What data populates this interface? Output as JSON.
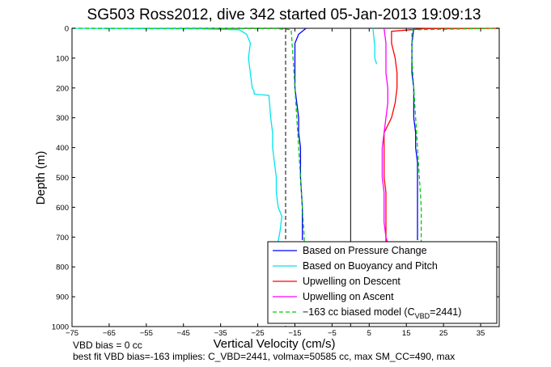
{
  "chart_data": {
    "type": "line",
    "title": "SG503 Ross2012, dive 342 started 05-Jan-2013 19:09:13",
    "xlabel": "Vertical Velocity (cm/s)",
    "ylabel": "Depth (m)",
    "xlim": [
      -75,
      40
    ],
    "ylim": [
      0,
      1000
    ],
    "y_reversed": true,
    "x_ticks": [
      -75,
      -65,
      -55,
      -45,
      -35,
      -25,
      -15,
      -5,
      5,
      15,
      25,
      35
    ],
    "y_ticks": [
      0,
      100,
      200,
      300,
      400,
      500,
      600,
      700,
      800,
      900,
      1000
    ],
    "grid": false,
    "legend_position": "bottom-right",
    "legend": [
      {
        "label": "Based on Pressure Change",
        "color": "#0000ff",
        "style": "solid"
      },
      {
        "label": "Based on Buoyancy and Pitch",
        "color": "#00e5ee",
        "style": "solid"
      },
      {
        "label": "Upwelling on Descent",
        "color": "#ff0000",
        "style": "solid"
      },
      {
        "label": "Upwelling on Ascent",
        "color": "#ff00ff",
        "style": "solid"
      },
      {
        "label_pre": "−163 cc biased model (C",
        "label_sub": "VBD",
        "label_post": "=2441)",
        "color": "#00cc00",
        "style": "dashed"
      }
    ],
    "series": [
      {
        "name": "Based on Pressure Change",
        "color": "#0000ff",
        "x": [
          -12,
          -14,
          -15,
          -15,
          -15,
          -15,
          -14.5,
          -14,
          -14,
          -13.5,
          -13.5,
          -13.5,
          -13,
          -13,
          -13
        ],
        "y": [
          0,
          20,
          50,
          100,
          150,
          200,
          250,
          300,
          350,
          400,
          450,
          500,
          600,
          700,
          710
        ]
      },
      {
        "name": "Based on Pressure Change (ascent)",
        "color": "#0000ff",
        "x": [
          17,
          16.5,
          16.5,
          16.5,
          17,
          17,
          17,
          17.5,
          17.5,
          18,
          18,
          18,
          18
        ],
        "y": [
          0,
          50,
          100,
          150,
          200,
          250,
          300,
          350,
          400,
          450,
          500,
          600,
          710
        ]
      },
      {
        "name": "Based on Buoyancy and Pitch",
        "color": "#00e5ee",
        "x": [
          -75,
          -40,
          -30,
          -28,
          -27,
          -27.5,
          -27,
          -26.5,
          -26,
          -26,
          -25,
          -22,
          -21.5,
          -21,
          -21,
          -20.5,
          -20,
          -20,
          -19.5,
          -18.5,
          -19,
          -20
        ],
        "y": [
          0,
          2,
          5,
          20,
          50,
          100,
          150,
          200,
          210,
          220,
          222,
          225,
          300,
          350,
          400,
          450,
          500,
          550,
          600,
          630,
          680,
          750
        ]
      },
      {
        "name": "Based on Buoyancy and Pitch (ascent)",
        "color": "#00e5ee",
        "x": [
          6,
          6.5,
          6.5,
          7
        ],
        "y": [
          0,
          60,
          100,
          120
        ]
      },
      {
        "name": "Upwelling on Descent",
        "color": "#ff0000",
        "x": [
          40,
          30,
          20,
          11,
          11,
          12,
          12.5,
          12.5,
          12,
          11,
          9,
          9,
          9,
          9,
          9.5,
          9.5,
          9.5,
          9.5,
          9.5
        ],
        "y": [
          0,
          0.5,
          1,
          10,
          50,
          100,
          150,
          200,
          250,
          300,
          350,
          400,
          450,
          500,
          550,
          600,
          650,
          700,
          720
        ]
      },
      {
        "name": "Upwelling on Ascent",
        "color": "#ff00ff",
        "x": [
          9,
          9.5,
          9.5,
          9.5,
          10,
          10,
          9.5,
          9,
          8.5,
          8.5,
          8.5,
          9,
          9,
          9,
          9.5,
          10
        ],
        "y": [
          0,
          50,
          100,
          150,
          200,
          250,
          300,
          350,
          400,
          450,
          500,
          550,
          600,
          650,
          700,
          720
        ]
      },
      {
        "name": "−163 cc biased model (CVBD=2441)",
        "color": "#00cc00",
        "dashed": true,
        "x": [
          -75,
          -20,
          -16,
          -15.5,
          -15,
          -14.5,
          -14,
          -13.5,
          -13,
          -12.5,
          -12.5
        ],
        "y": [
          0,
          1,
          5,
          100,
          200,
          300,
          400,
          500,
          600,
          700,
          720
        ]
      },
      {
        "name": "−163 cc biased model (CVBD=2441) ascent",
        "color": "#00cc00",
        "dashed": true,
        "x": [
          40,
          16.5,
          16.5,
          17,
          17.5,
          18,
          18.5,
          19,
          19,
          19
        ],
        "y": [
          0,
          5,
          100,
          200,
          300,
          400,
          500,
          600,
          700,
          720
        ]
      }
    ],
    "reference_lines": [
      {
        "x": -17.5,
        "style": "dashed",
        "color": "#000000"
      },
      {
        "x": 0,
        "style": "solid",
        "color": "#000000"
      }
    ]
  },
  "notes": {
    "line1": "VBD bias = 0 cc",
    "line2": "best fit VBD bias=-163 implies: C_VBD=2441, volmax=50585 cc, max SM_CC=490, max"
  }
}
